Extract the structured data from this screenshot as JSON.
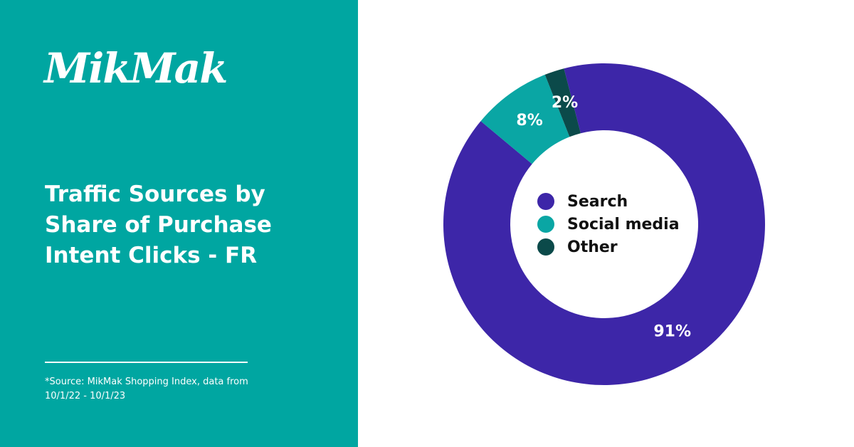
{
  "logo": "MikMak",
  "chart_data": {
    "type": "pie",
    "title": "Traffic Sources by Share of Purchase Intent Clicks - FR",
    "source": "*Source: MikMak Shopping Index, data from 10/1/22 - 10/1/23",
    "categories": [
      "Search",
      "Social media",
      "Other"
    ],
    "values": [
      91,
      8,
      2
    ],
    "value_labels": [
      "91%",
      "8%",
      "2%"
    ],
    "colors": [
      "#3d26a8",
      "#0aa6a4",
      "#0b4a4a"
    ],
    "donut": true
  }
}
